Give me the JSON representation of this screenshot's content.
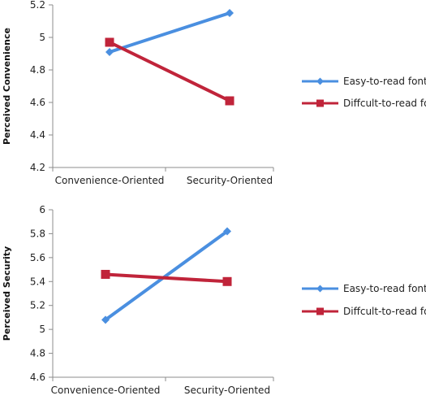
{
  "chart_data": [
    {
      "type": "line",
      "title": "",
      "xlabel": "",
      "ylabel": "Perceived Convenience",
      "ylim": [
        4.2,
        5.2
      ],
      "yticks": [
        "4.2",
        "4.4",
        "4.6",
        "4.8",
        "5",
        "5.2"
      ],
      "categories": [
        "Convenience-Oriented",
        "Security-Oriented"
      ],
      "grid": false,
      "legend_position": "right",
      "series": [
        {
          "name": "Easy-to-read font",
          "values": [
            4.91,
            5.15
          ],
          "color": "#4a8fe0",
          "marker": "diamond"
        },
        {
          "name": "Diffcult-to-read font",
          "values": [
            4.97,
            4.61
          ],
          "color": "#c0243a",
          "marker": "square"
        }
      ]
    },
    {
      "type": "line",
      "title": "",
      "xlabel": "",
      "ylabel": "Perceived Security",
      "ylim": [
        4.6,
        6.0
      ],
      "yticks": [
        "4.6",
        "4.8",
        "5",
        "5.2",
        "5.4",
        "5.6",
        "5.8",
        "6"
      ],
      "categories": [
        "Convenience-Oriented",
        "Security-Oriented"
      ],
      "grid": false,
      "legend_position": "right",
      "series": [
        {
          "name": "Easy-to-read font",
          "values": [
            5.08,
            5.82
          ],
          "color": "#4a8fe0",
          "marker": "diamond"
        },
        {
          "name": "Diffcult-to-read font",
          "values": [
            5.46,
            5.4
          ],
          "color": "#c0243a",
          "marker": "square"
        }
      ]
    }
  ]
}
